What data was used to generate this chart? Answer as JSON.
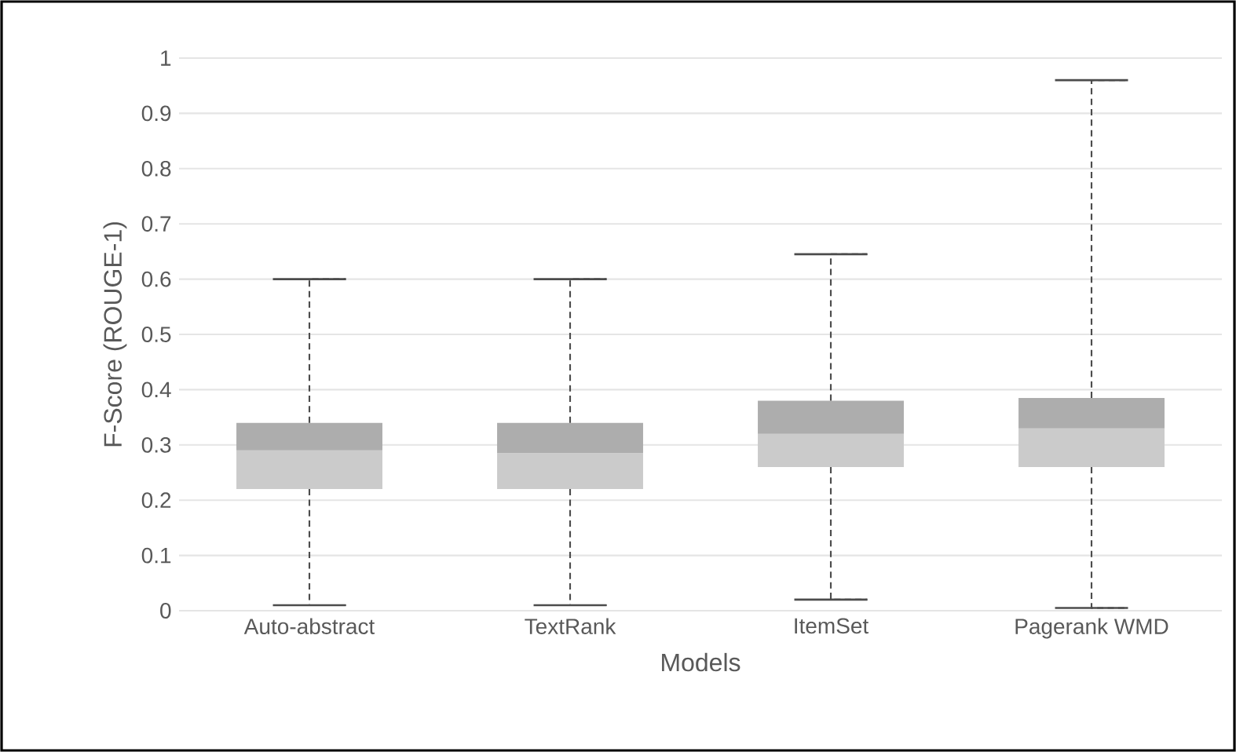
{
  "chart_data": {
    "type": "box",
    "xlabel": "Models",
    "ylabel": "F-Score (ROUGE-1)",
    "categories": [
      "Auto-abstract",
      "TextRank",
      "ItemSet",
      "Pagerank WMD"
    ],
    "series": [
      {
        "color": "#cbcbcb",
        "boxes": [
          {
            "low": 0.01,
            "q1": 0.22,
            "median": 0.29,
            "q3": 0.34,
            "high": 0.6
          },
          {
            "low": 0.01,
            "q1": 0.22,
            "median": 0.285,
            "q3": 0.34,
            "high": 0.6
          },
          {
            "low": 0.02,
            "q1": 0.26,
            "median": 0.32,
            "q3": 0.38,
            "high": 0.645
          },
          {
            "low": 0.005,
            "q1": 0.26,
            "median": 0.33,
            "q3": 0.385,
            "high": 0.96
          }
        ]
      }
    ],
    "ylim": [
      0,
      1
    ],
    "yticks": [
      0,
      0.1,
      0.2,
      0.3,
      0.4,
      0.5,
      0.6,
      0.7,
      0.8,
      0.9,
      1
    ],
    "grid": "y"
  }
}
